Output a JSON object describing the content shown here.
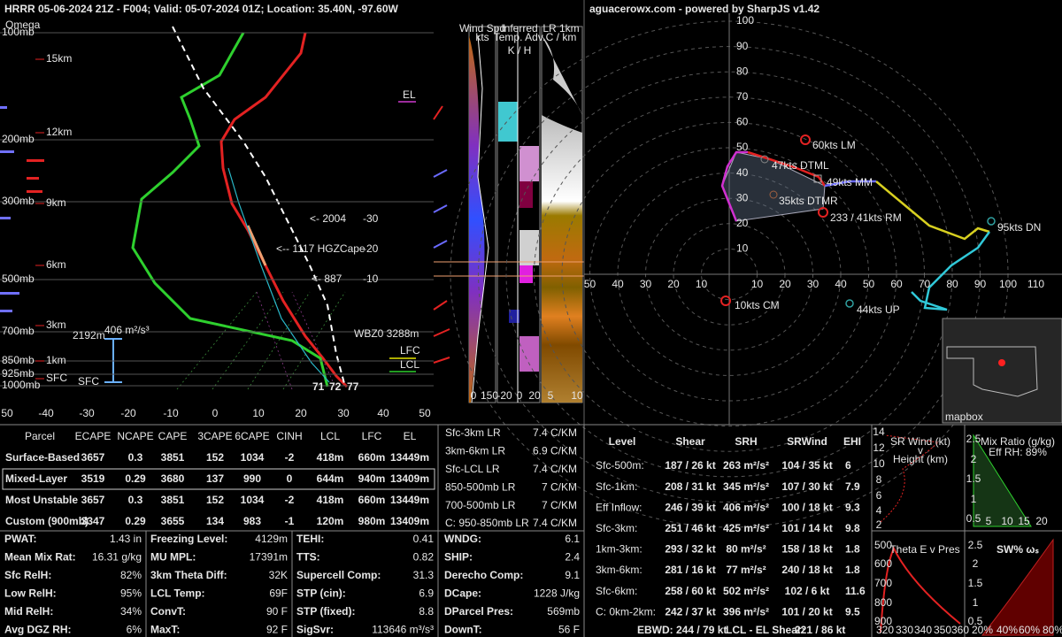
{
  "title": "HRRR 05-06-2024 21Z - F004; Valid: 05-07-2024 01Z; Location: 35.40N, -97.60W",
  "skewt": {
    "omega": "Omega",
    "pressure_labels": [
      "100mb",
      "200mb",
      "300mb",
      "500mb",
      "700mb",
      "850mb",
      "925mb",
      "1000mb"
    ],
    "height_labels": [
      "15km",
      "12km",
      "9km",
      "6km",
      "3km",
      "1km",
      "SFC"
    ],
    "temp_ticks": [
      "50",
      "-40",
      "-30",
      "-20",
      "-10",
      "0",
      "10",
      "20",
      "30",
      "40",
      "50"
    ],
    "annotations": [
      "EL",
      "<- 2004",
      "<-- 1117 HGZCape",
      "<- 887",
      "-30",
      "-20",
      "-10",
      "WBZ0 3288m",
      "LFC",
      "LCL",
      "2192m",
      "406 m²/s³",
      "SFC",
      "71",
      "72",
      "77"
    ],
    "panel_headers": [
      "Wind Spd",
      "kts",
      "Inferred",
      "Temp. Adv.",
      "K / H",
      "LR 1km",
      "C / km"
    ],
    "panel_ticks": [
      "0",
      "150",
      "-20",
      "0",
      "20",
      "5",
      "10"
    ]
  },
  "hodograph": {
    "header": "aguacerowx.com - powered by SharpJS v1.42",
    "ring_labels": [
      10,
      20,
      30,
      40,
      50,
      60,
      70,
      80,
      90,
      100
    ],
    "x_labels_left": [
      50,
      40,
      30,
      20,
      10
    ],
    "x_labels_right": [
      10,
      20,
      30,
      40,
      50,
      60,
      70,
      80,
      90,
      100,
      110
    ],
    "annotations": [
      "60kts LM",
      "47kts DTML",
      "49kts MM",
      "35kts DTMR",
      "233 / 41kts RM",
      "95kts DN",
      "10kts CM",
      "44kts UP"
    ],
    "map_credit": "mapbox"
  },
  "parcel_table": {
    "headers": [
      "Parcel",
      "ECAPE",
      "NCAPE",
      "CAPE",
      "3CAPE",
      "6CAPE",
      "CINH",
      "LCL",
      "LFC",
      "EL"
    ],
    "rows": [
      [
        "Surface-Based",
        "3657",
        "0.3",
        "3851",
        "152",
        "1034",
        "-2",
        "418m",
        "660m",
        "13449m"
      ],
      [
        "Mixed-Layer",
        "3519",
        "0.29",
        "3680",
        "137",
        "990",
        "0",
        "644m",
        "940m",
        "13409m"
      ],
      [
        "Most Unstable",
        "3657",
        "0.3",
        "3851",
        "152",
        "1034",
        "-2",
        "418m",
        "660m",
        "13449m"
      ],
      [
        "Custom (900mb)",
        "3347",
        "0.29",
        "3655",
        "134",
        "983",
        "-1",
        "120m",
        "980m",
        "13409m"
      ]
    ]
  },
  "lapse_rates": [
    {
      "label": "Sfc-3km LR",
      "value": "7.4 C/KM"
    },
    {
      "label": "3km-6km LR",
      "value": "6.9 C/KM"
    },
    {
      "label": "Sfc-LCL LR",
      "value": "7.4 C/KM"
    },
    {
      "label": "850-500mb LR",
      "value": "7 C/KM"
    },
    {
      "label": "700-500mb LR",
      "value": "7 C/KM"
    },
    {
      "label": "C: 950-850mb LR",
      "value": "7.4 C/KM"
    }
  ],
  "indices": [
    [
      {
        "label": "PWAT:",
        "value": "1.43 in"
      },
      {
        "label": "Mean Mix Rat:",
        "value": "16.31 g/kg"
      },
      {
        "label": "Sfc RelH:",
        "value": "82%"
      },
      {
        "label": "Low RelH:",
        "value": "95%"
      },
      {
        "label": "Mid RelH:",
        "value": "34%"
      },
      {
        "label": "Avg DGZ RH:",
        "value": "6%"
      }
    ],
    [
      {
        "label": "Freezing Level:",
        "value": "4129m"
      },
      {
        "label": "MU MPL:",
        "value": "17391m"
      },
      {
        "label": "3km Theta Diff:",
        "value": "32K"
      },
      {
        "label": "LCL Temp:",
        "value": "69F"
      },
      {
        "label": "ConvT:",
        "value": "90 F"
      },
      {
        "label": "MaxT:",
        "value": "92 F"
      }
    ],
    [
      {
        "label": "TEHI:",
        "value": "0.41"
      },
      {
        "label": "TTS:",
        "value": "0.82"
      },
      {
        "label": "Supercell Comp:",
        "value": "31.3"
      },
      {
        "label": "STP (cin):",
        "value": "6.9"
      },
      {
        "label": "STP (fixed):",
        "value": "8.8"
      },
      {
        "label": "SigSvr:",
        "value": "113646 m³/s³"
      }
    ],
    [
      {
        "label": "WNDG:",
        "value": "6.1"
      },
      {
        "label": "SHIP:",
        "value": "2.4"
      },
      {
        "label": "Derecho Comp:",
        "value": "9.1"
      },
      {
        "label": "DCape:",
        "value": "1228 J/kg"
      },
      {
        "label": "DParcel Pres:",
        "value": "569mb"
      },
      {
        "label": "DownT:",
        "value": "56 F"
      }
    ]
  ],
  "kinematics": {
    "headers": [
      "Level",
      "Shear",
      "SRH",
      "SRWind",
      "EHI"
    ],
    "rows": [
      [
        "Sfc-500m:",
        "187 / 26 kt",
        "263 m²/s²",
        "104 / 35 kt",
        "6"
      ],
      [
        "Sfc-1km:",
        "208 / 31 kt",
        "345 m²/s²",
        "107 / 30 kt",
        "7.9"
      ],
      [
        "Eff Inflow:",
        "246 / 39 kt",
        "406 m²/s²",
        "100 / 18 kt",
        "9.3"
      ],
      [
        "Sfc-3km:",
        "251 / 46 kt",
        "425 m²/s²",
        "101 / 14 kt",
        "9.8"
      ],
      [
        "1km-3km:",
        "293 / 32 kt",
        "80 m²/s²",
        "158 / 18 kt",
        "1.8"
      ],
      [
        "3km-6km:",
        "281 / 16 kt",
        "77 m²/s²",
        "240 / 18 kt",
        "1.8"
      ],
      [
        "Sfc-6km:",
        "258 / 60 kt",
        "502 m²/s²",
        "102 / 6 kt",
        "11.6"
      ],
      [
        "C: 0km-2km:",
        "242 / 37 kt",
        "396 m²/s²",
        "101 / 20 kt",
        "9.5"
      ]
    ],
    "ebwd": "EBWD: 244 / 79 kt",
    "lcl_el_label": "LCL - EL Shear:",
    "lcl_el_value": "221 / 86 kt"
  },
  "mini_plots": [
    {
      "title": [
        "SR Wind (kt)",
        "v",
        "Height (km)"
      ],
      "yticks": [
        "14",
        "12",
        "10",
        "8",
        "6",
        "4",
        "2"
      ],
      "xticks": []
    },
    {
      "title": [
        "Mix Ratio (g/kg)",
        "Eff RH: 89%"
      ],
      "yticks": [
        "2.5",
        "2",
        "1.5",
        "1",
        "0.5"
      ],
      "xticks": [
        "5",
        "10",
        "15",
        "20"
      ]
    },
    {
      "title": [
        "Theta E v Pres"
      ],
      "yticks": [
        "500",
        "600",
        "700",
        "800",
        "900"
      ],
      "xticks": [
        "320",
        "330",
        "340",
        "350",
        "360"
      ]
    },
    {
      "title": [
        "SW% ωₛ"
      ],
      "yticks": [
        "2.5",
        "2",
        "1.5",
        "1",
        "0.5"
      ],
      "xticks": [
        "20%",
        "40%",
        "60%",
        "80%"
      ]
    }
  ]
}
